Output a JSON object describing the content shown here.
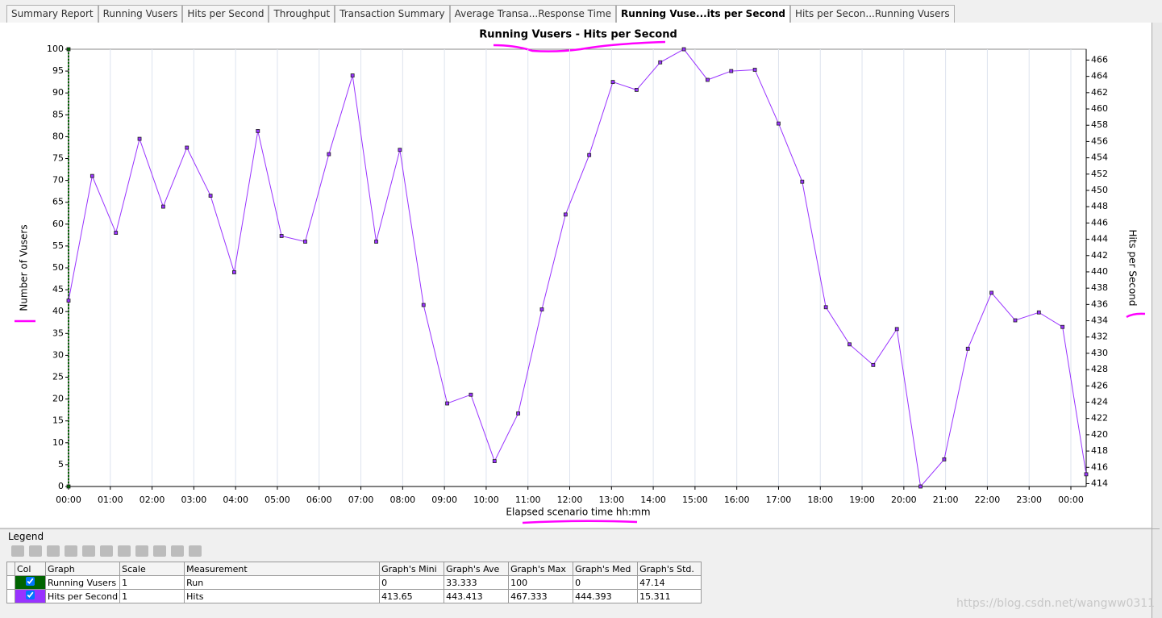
{
  "tabs": [
    "Summary Report",
    "Running Vusers",
    "Hits per Second",
    "Throughput",
    "Transaction Summary",
    "Average Transa...Response Time",
    "Running Vuse...its per Second",
    "Hits per Secon...Running Vusers"
  ],
  "active_tab": 6,
  "chart_data": {
    "type": "line",
    "title": "Running Vusers - Hits per Second",
    "x_label": "Elapsed scenario time hh:mm",
    "y_label": "Number of Vusers",
    "y2_label": "Hits per Second",
    "xlim": [
      0,
      1462
    ],
    "xticks": [
      {
        "value": 0,
        "label": "00:00"
      },
      {
        "value": 60,
        "label": "01:00"
      },
      {
        "value": 120,
        "label": "02:00"
      },
      {
        "value": 180,
        "label": "03:00"
      },
      {
        "value": 240,
        "label": "04:00"
      },
      {
        "value": 300,
        "label": "05:00"
      },
      {
        "value": 360,
        "label": "06:00"
      },
      {
        "value": 420,
        "label": "07:00"
      },
      {
        "value": 480,
        "label": "08:00"
      },
      {
        "value": 540,
        "label": "09:00"
      },
      {
        "value": 600,
        "label": "10:00"
      },
      {
        "value": 660,
        "label": "11:00"
      },
      {
        "value": 720,
        "label": "12:00"
      },
      {
        "value": 780,
        "label": "13:00"
      },
      {
        "value": 840,
        "label": "14:00"
      },
      {
        "value": 900,
        "label": "15:00"
      },
      {
        "value": 960,
        "label": "16:00"
      },
      {
        "value": 1020,
        "label": "17:00"
      },
      {
        "value": 1080,
        "label": "18:00"
      },
      {
        "value": 1140,
        "label": "19:00"
      },
      {
        "value": 1200,
        "label": "20:00"
      },
      {
        "value": 1260,
        "label": "21:00"
      },
      {
        "value": 1320,
        "label": "22:00"
      },
      {
        "value": 1380,
        "label": "23:00"
      },
      {
        "value": 1440,
        "label": "00:00"
      }
    ],
    "ylim": [
      0,
      100
    ],
    "yticks": [
      0,
      5,
      10,
      15,
      20,
      25,
      30,
      35,
      40,
      45,
      50,
      55,
      60,
      65,
      70,
      75,
      80,
      85,
      90,
      95,
      100
    ],
    "y2lim": [
      413.65,
      467.333
    ],
    "y2ticks": [
      414,
      416,
      418,
      420,
      422,
      424,
      426,
      428,
      430,
      432,
      434,
      436,
      438,
      440,
      442,
      444,
      446,
      448,
      450,
      452,
      454,
      456,
      458,
      460,
      462,
      464,
      466
    ],
    "grid": "x",
    "series": [
      {
        "name": "Running Vusers",
        "color": "#006400",
        "x": [
          0,
          0
        ],
        "values": [
          0,
          100
        ]
      },
      {
        "name": "Hits per Second",
        "color": "#9933ff",
        "axis": "y2",
        "x": [
          0,
          34,
          68,
          102,
          136,
          170,
          204,
          238,
          272,
          306,
          340,
          374,
          408,
          442,
          476,
          510,
          544,
          578,
          612,
          646,
          680,
          714,
          748,
          782,
          816,
          850,
          884,
          918,
          952,
          986,
          1020,
          1054,
          1088,
          1122,
          1156,
          1190,
          1224,
          1258,
          1292,
          1326,
          1360,
          1394,
          1428,
          1462
        ],
        "values": [
          436.47,
          451.77,
          444.79,
          456.33,
          448.01,
          455.25,
          449.35,
          439.95,
          457.29,
          444.41,
          443.71,
          454.45,
          464.11,
          443.71,
          454.98,
          435.93,
          423.85,
          424.92,
          416.76,
          422.62,
          435.39,
          447.04,
          454.34,
          463.31,
          462.34,
          465.72,
          467.33,
          463.57,
          464.65,
          464.81,
          458.21,
          451.07,
          435.66,
          431.1,
          428.57,
          432.98,
          413.65,
          416.98,
          430.56,
          437.43,
          434.05,
          435.02,
          433.24,
          415.15
        ]
      }
    ]
  },
  "legend": {
    "title": "Legend",
    "columns": [
      "Col",
      "Graph",
      "Scale",
      "Measurement",
      "Graph's Mini",
      "Graph's Ave",
      "Graph's Max",
      "Graph's Med",
      "Graph's Std."
    ],
    "rows": [
      {
        "series": 0,
        "color": "#006400",
        "cells": [
          1,
          "Run",
          0,
          33.333,
          100,
          0,
          47.14
        ]
      },
      {
        "series": 1,
        "color": "#9933ff",
        "cells": [
          1,
          "Hits",
          413.65,
          443.413,
          467.333,
          444.393,
          15.311
        ]
      }
    ]
  },
  "watermark": "https://blog.csdn.net/wangww0311"
}
